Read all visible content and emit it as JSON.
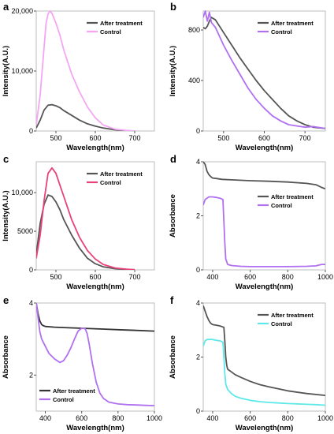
{
  "chart_data": [
    {
      "panel": "a",
      "type": "line",
      "xlabel": "Wavelength(nm)",
      "ylabel": "Intensity(A.U.)",
      "xlim": [
        450,
        750
      ],
      "ylim": [
        0,
        20000
      ],
      "xticks": [
        500,
        600,
        700
      ],
      "yticks": [
        0,
        10000,
        20000
      ],
      "yticklabels": [
        "0",
        "10,000",
        "20,000"
      ],
      "legend_position": "top-right",
      "series": [
        {
          "name": "After treatment",
          "color": "#555555",
          "x": [
            450,
            460,
            470,
            480,
            490,
            500,
            510,
            520,
            540,
            560,
            580,
            600,
            620,
            650,
            680,
            700
          ],
          "y": [
            500,
            1800,
            3500,
            4300,
            4400,
            4200,
            3900,
            3400,
            2600,
            1800,
            1200,
            800,
            500,
            200,
            50,
            0
          ]
        },
        {
          "name": "Control",
          "color": "#f4a6f4",
          "x": [
            450,
            460,
            470,
            475,
            480,
            485,
            490,
            500,
            510,
            520,
            540,
            560,
            580,
            600,
            620,
            650,
            680,
            700
          ],
          "y": [
            1000,
            6000,
            14000,
            18000,
            19500,
            20000,
            19600,
            18000,
            16000,
            13500,
            9500,
            6500,
            4000,
            2200,
            1000,
            300,
            80,
            0
          ]
        }
      ]
    },
    {
      "panel": "b",
      "type": "line",
      "xlabel": "Wavelength(nm)",
      "ylabel": "Intensity(A.U.)",
      "xlim": [
        450,
        750
      ],
      "ylim": [
        0,
        950
      ],
      "xticks": [
        500,
        600,
        700
      ],
      "yticks": [
        0,
        400,
        800
      ],
      "yticklabels": [
        "0",
        "400",
        "800"
      ],
      "legend_position": "top-right",
      "series": [
        {
          "name": "After treatment",
          "color": "#555555",
          "x": [
            450,
            455,
            460,
            465,
            470,
            480,
            500,
            520,
            540,
            560,
            580,
            600,
            620,
            640,
            660,
            680,
            700,
            720,
            750
          ],
          "y": [
            820,
            810,
            830,
            870,
            900,
            880,
            780,
            680,
            580,
            490,
            400,
            320,
            250,
            180,
            120,
            80,
            50,
            30,
            20
          ]
        },
        {
          "name": "Control",
          "color": "#b070f0",
          "x": [
            450,
            455,
            460,
            465,
            470,
            480,
            500,
            520,
            540,
            560,
            580,
            600,
            620,
            640,
            660,
            680,
            700,
            720,
            750
          ],
          "y": [
            900,
            950,
            870,
            940,
            860,
            820,
            680,
            560,
            450,
            340,
            250,
            180,
            120,
            80,
            50,
            40,
            30,
            35,
            20
          ]
        }
      ]
    },
    {
      "panel": "c",
      "type": "line",
      "xlabel": "Wavelength(nm)",
      "ylabel": "Intensity(A.U.)",
      "xlim": [
        450,
        750
      ],
      "ylim": [
        0,
        14000
      ],
      "xticks": [
        500,
        600,
        700
      ],
      "yticks": [
        0,
        5000,
        10000
      ],
      "yticklabels": [
        "0",
        "5000",
        "10,000"
      ],
      "legend_position": "top-right",
      "series": [
        {
          "name": "After treatment",
          "color": "#555555",
          "x": [
            450,
            460,
            470,
            480,
            490,
            500,
            510,
            520,
            540,
            560,
            580,
            600,
            620,
            650,
            680,
            700
          ],
          "y": [
            2000,
            6000,
            8500,
            9700,
            9500,
            8800,
            7800,
            6500,
            4500,
            2800,
            1500,
            800,
            400,
            150,
            50,
            20
          ]
        },
        {
          "name": "Control",
          "color": "#e8427a",
          "x": [
            450,
            460,
            470,
            480,
            490,
            500,
            510,
            520,
            540,
            560,
            580,
            600,
            620,
            650,
            680,
            700
          ],
          "y": [
            1500,
            4500,
            9000,
            12500,
            13200,
            12500,
            11000,
            9500,
            6500,
            4200,
            2500,
            1400,
            700,
            250,
            80,
            20
          ]
        }
      ]
    },
    {
      "panel": "d",
      "type": "line",
      "xlabel": "Wavelength(nm)",
      "ylabel": "Absorbance",
      "xlim": [
        350,
        1000
      ],
      "ylim": [
        0,
        4
      ],
      "xticks": [
        400,
        600,
        800,
        1000
      ],
      "yticks": [
        0,
        2,
        4
      ],
      "yticklabels": [
        "0",
        "2",
        "4"
      ],
      "legend_position": "middle-right",
      "series": [
        {
          "name": "After treatment",
          "color": "#555555",
          "x": [
            350,
            360,
            370,
            380,
            390,
            400,
            420,
            450,
            500,
            600,
            700,
            800,
            900,
            950,
            980,
            1000
          ],
          "y": [
            4.0,
            3.9,
            3.65,
            3.52,
            3.45,
            3.4,
            3.38,
            3.35,
            3.33,
            3.3,
            3.28,
            3.25,
            3.2,
            3.15,
            3.05,
            3.0
          ]
        },
        {
          "name": "Control",
          "color": "#b070f0",
          "x": [
            350,
            360,
            370,
            380,
            400,
            420,
            440,
            455,
            460,
            465,
            470,
            480,
            500,
            550,
            600,
            700,
            800,
            900,
            950,
            980,
            1000
          ],
          "y": [
            2.4,
            2.6,
            2.65,
            2.7,
            2.7,
            2.68,
            2.65,
            2.6,
            1.8,
            1.0,
            0.4,
            0.2,
            0.16,
            0.13,
            0.12,
            0.12,
            0.12,
            0.13,
            0.15,
            0.2,
            0.2
          ]
        }
      ]
    },
    {
      "panel": "e",
      "type": "line",
      "xlabel": "Wavelength(nm)",
      "ylabel": "Absorbance",
      "xlim": [
        350,
        1000
      ],
      "ylim": [
        1,
        4
      ],
      "xticks": [
        400,
        600,
        800,
        1000
      ],
      "yticks": [
        2,
        4
      ],
      "yticklabels": [
        "2",
        "4"
      ],
      "legend_position": "bottom-left",
      "series": [
        {
          "name": "After treatment",
          "color": "#333333",
          "x": [
            350,
            360,
            370,
            380,
            390,
            400,
            450,
            500,
            600,
            700,
            800,
            900,
            1000
          ],
          "y": [
            4.0,
            3.7,
            3.5,
            3.4,
            3.37,
            3.35,
            3.33,
            3.32,
            3.3,
            3.28,
            3.26,
            3.24,
            3.22
          ]
        },
        {
          "name": "Control",
          "color": "#b070f0",
          "x": [
            350,
            360,
            370,
            380,
            400,
            420,
            450,
            480,
            500,
            520,
            540,
            560,
            580,
            600,
            610,
            620,
            630,
            640,
            660,
            680,
            700,
            720,
            750,
            800,
            850,
            900,
            950,
            1000
          ],
          "y": [
            4.0,
            3.6,
            3.2,
            3.0,
            2.8,
            2.6,
            2.45,
            2.35,
            2.4,
            2.55,
            2.75,
            3.0,
            3.22,
            3.3,
            3.3,
            3.28,
            3.15,
            2.9,
            2.3,
            1.8,
            1.5,
            1.35,
            1.25,
            1.2,
            1.18,
            1.17,
            1.16,
            1.15
          ]
        }
      ]
    },
    {
      "panel": "f",
      "type": "line",
      "xlabel": "Wavelength(nm)",
      "ylabel": "Absorbance",
      "xlim": [
        350,
        1000
      ],
      "ylim": [
        0,
        4
      ],
      "xticks": [
        400,
        600,
        800,
        1000
      ],
      "yticks": [
        0,
        2,
        4
      ],
      "yticklabels": [
        "0",
        "2",
        "4"
      ],
      "legend_position": "top-right",
      "series": [
        {
          "name": "After treatment",
          "color": "#555555",
          "x": [
            350,
            360,
            370,
            380,
            390,
            400,
            420,
            440,
            460,
            465,
            470,
            475,
            480,
            500,
            520,
            550,
            600,
            650,
            700,
            800,
            900,
            1000
          ],
          "y": [
            3.9,
            3.7,
            3.5,
            3.35,
            3.25,
            3.2,
            3.18,
            3.15,
            3.1,
            2.6,
            2.0,
            1.7,
            1.55,
            1.45,
            1.35,
            1.25,
            1.1,
            0.98,
            0.9,
            0.75,
            0.65,
            0.58
          ]
        },
        {
          "name": "Control",
          "color": "#5ee8e8",
          "x": [
            350,
            360,
            370,
            380,
            400,
            420,
            440,
            455,
            460,
            465,
            470,
            480,
            500,
            520,
            550,
            600,
            650,
            700,
            750,
            800,
            850,
            900,
            950,
            1000
          ],
          "y": [
            2.4,
            2.6,
            2.65,
            2.65,
            2.65,
            2.62,
            2.6,
            2.55,
            2.0,
            1.4,
            1.0,
            0.8,
            0.65,
            0.55,
            0.48,
            0.4,
            0.35,
            0.32,
            0.3,
            0.28,
            0.27,
            0.25,
            0.24,
            0.22
          ]
        }
      ]
    }
  ]
}
